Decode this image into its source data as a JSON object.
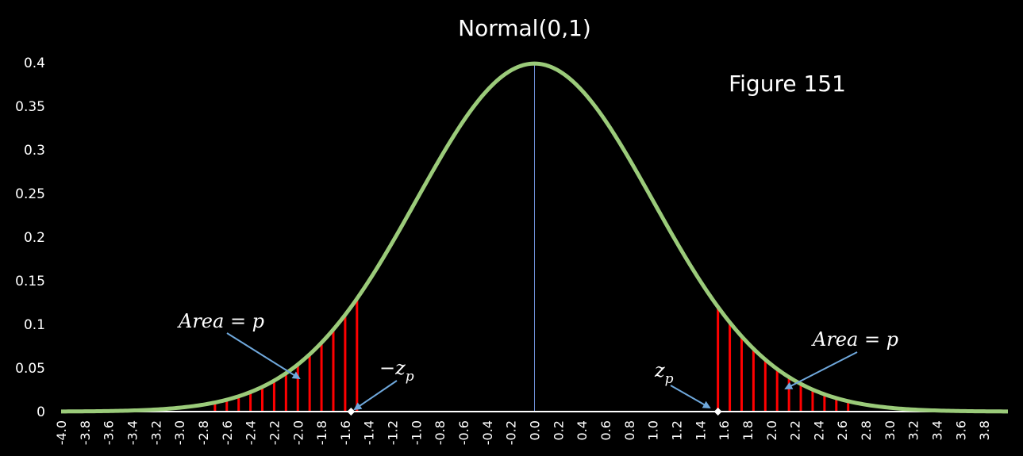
{
  "chart_data": {
    "type": "line",
    "title": "Normal(0,1)",
    "figure_label": "Figure 151",
    "xlabel": "",
    "ylabel": "",
    "distribution": {
      "name": "Normal",
      "mean": 0,
      "sd": 1
    },
    "xlim": [
      -4.0,
      4.0
    ],
    "ylim": [
      0,
      0.4
    ],
    "x_tick_labels": [
      "-4.0",
      "-3.8",
      "-3.6",
      "-3.4",
      "-3.2",
      "-3.0",
      "-2.8",
      "-2.6",
      "-2.4",
      "-2.2",
      "-2.0",
      "-1.8",
      "-1.6",
      "-1.4",
      "-1.2",
      "-1.0",
      "-0.8",
      "-0.6",
      "-0.4",
      "-0.2",
      "0.0",
      "0.2",
      "0.4",
      "0.6",
      "0.8",
      "1.0",
      "1.2",
      "1.4",
      "1.6",
      "1.8",
      "2.0",
      "2.2",
      "2.4",
      "2.6",
      "2.8",
      "3.0",
      "3.2",
      "3.4",
      "3.6",
      "3.8"
    ],
    "y_tick_labels": [
      "0",
      "0.05",
      "0.1",
      "0.15",
      "0.2",
      "0.25",
      "0.3",
      "0.35",
      "0.4"
    ],
    "y_ticks": [
      0,
      0.05,
      0.1,
      0.15,
      0.2,
      0.25,
      0.3,
      0.35,
      0.4
    ],
    "critical_value": 1.55,
    "shaded_tails": {
      "left": {
        "from": -2.7,
        "to": -1.55
      },
      "right": {
        "from": 1.55,
        "to": 2.65
      },
      "line_spacing": 0.1
    },
    "annotations": {
      "left_area": "Area = p",
      "right_area": "Area = p",
      "neg_z": "−z",
      "pos_z": "z",
      "subscript": "p"
    },
    "colors": {
      "curve": "#9BCB7A",
      "shade": "#FF0000",
      "mean_line": "#6E8FD6",
      "arrow": "#6FA8DC",
      "axis": "#FFFFFF",
      "background": "#000000"
    },
    "grid": false,
    "legend": "none"
  }
}
